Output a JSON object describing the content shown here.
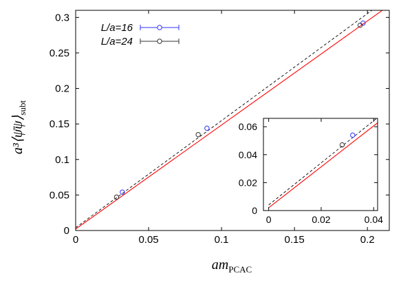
{
  "chart_data": {
    "type": "scatter",
    "xlabel": "am",
    "xlabel_sub": "PCAC",
    "ylabel": "a³⟨ψ̄ψ⟩",
    "ylabel_sub": "subt",
    "xlim": [
      0,
      0.215
    ],
    "ylim": [
      0,
      0.31
    ],
    "xticks": [
      "0",
      "0.05",
      "0.1",
      "0.15",
      "0.2"
    ],
    "yticks": [
      "0",
      "0.05",
      "0.1",
      "0.15",
      "0.2",
      "0.25",
      "0.3"
    ],
    "legend_position": "top-left",
    "series": [
      {
        "name": "L/a=16",
        "color": "#3333ff",
        "points": [
          {
            "x": 0.032,
            "y": 0.054
          },
          {
            "x": 0.09,
            "y": 0.144
          },
          {
            "x": 0.197,
            "y": 0.292
          }
        ]
      },
      {
        "name": "L/a=24",
        "color": "#333333",
        "points": [
          {
            "x": 0.028,
            "y": 0.047
          },
          {
            "x": 0.084,
            "y": 0.135
          },
          {
            "x": 0.195,
            "y": 0.289
          }
        ]
      }
    ],
    "fits": [
      {
        "style": "solid",
        "color": "#ff0000",
        "x0": 0,
        "y0": 0.002,
        "x1": 0.215,
        "y1": 0.317
      },
      {
        "style": "dashed",
        "color": "#000000",
        "x0": 0,
        "y0": 0.004,
        "x1": 0.215,
        "y1": 0.328
      }
    ],
    "inset": {
      "xlim": [
        -0.002,
        0.0415
      ],
      "ylim": [
        0,
        0.066
      ],
      "xticks": [
        "0",
        "0.02",
        "0.04"
      ],
      "yticks": [
        "0",
        "0.02",
        "0.04",
        "0.06"
      ]
    }
  }
}
